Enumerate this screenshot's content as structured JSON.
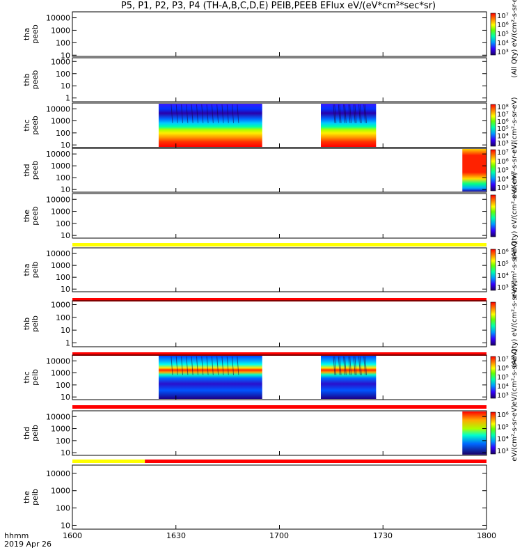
{
  "title": "P5, P1, P2, P3, P4 (TH-A,B,C,D,E) PEIB,PEEB EFlux eV/(eV*cm²*sec*sr)",
  "x_ticks": [
    "1600",
    "1630",
    "1700",
    "1730",
    "1800"
  ],
  "x_label_lines": [
    "hhmm",
    "2019 Apr 26"
  ],
  "chart_data": {
    "type": "heatmap",
    "title": "P5, P1, P2, P3, P4 (TH-A,B,C,D,E) PEIB,PEEB EFlux eV/(eV*cm²*sec*sr)",
    "x_range_hhmm": [
      "16:00",
      "18:00"
    ],
    "x_ticks": [
      "1600",
      "1630",
      "1700",
      "1730",
      "1800"
    ],
    "y_scale": "log",
    "colormap": "rainbow (purple-blue-cyan-green-yellow-red)",
    "panels": [
      {
        "label_lines": [
          "tha",
          "peeb"
        ],
        "yticks": [
          "10",
          "100",
          "1000",
          "10000"
        ],
        "ylim": [
          8,
          30000
        ],
        "data_blocks": [],
        "flag_bar": null,
        "colorbar": {
          "ticks": [
            "10³",
            "10⁴",
            "10⁵",
            "10⁶",
            "10⁷"
          ],
          "label": "(All Qty) eV/(cm²-s-sr-eV)"
        }
      },
      {
        "label_lines": [
          "thb",
          "peeb"
        ],
        "yticks": [
          "1",
          "10",
          "100",
          "1000"
        ],
        "ylim": [
          0.5,
          2000
        ],
        "data_blocks": [],
        "flag_bar": null,
        "colorbar": null
      },
      {
        "label_lines": [
          "thc",
          "peeb"
        ],
        "yticks": [
          "10",
          "100",
          "1000",
          "10000"
        ],
        "ylim": [
          6,
          30000
        ],
        "data_blocks": [
          {
            "start": "16:25",
            "end": "16:55"
          },
          {
            "start": "17:12",
            "end": "17:28"
          }
        ],
        "flag_bar": null,
        "colorbar": {
          "ticks": [
            "10³",
            "10⁴",
            "10⁵",
            "10⁶",
            "10⁷",
            "10⁸"
          ],
          "label": "eV/(cm²-s-sr-eV)"
        }
      },
      {
        "label_lines": [
          "thd",
          "peeb"
        ],
        "yticks": [
          "10",
          "100",
          "1000",
          "10000"
        ],
        "ylim": [
          6,
          30000
        ],
        "data_blocks": [
          {
            "start": "17:53",
            "end": "18:00"
          }
        ],
        "flag_bar": null,
        "colorbar": {
          "ticks": [
            "10³",
            "10⁴",
            "10⁵",
            "10⁶",
            "10⁷"
          ],
          "label": "eV/(cm²-s-sr-eV)"
        }
      },
      {
        "label_lines": [
          "the",
          "peeb"
        ],
        "yticks": [
          "10",
          "100",
          "1000",
          "10000"
        ],
        "ylim": [
          6,
          30000
        ],
        "data_blocks": [],
        "flag_bar": {
          "color": "#ffff00",
          "segments": [
            [
              "16:00",
              "18:00"
            ]
          ]
        },
        "colorbar": {
          "ticks": [],
          "label": "(All Qty) eV/(cm²-s-sr-eV)"
        }
      },
      {
        "label_lines": [
          "tha",
          "peib"
        ],
        "yticks": [
          "10",
          "100",
          "1000",
          "10000"
        ],
        "ylim": [
          6,
          30000
        ],
        "data_blocks": [],
        "flag_bar": {
          "color": "#ff0000",
          "segments": [
            [
              "16:00",
              "18:00"
            ]
          ]
        },
        "colorbar": {
          "ticks": [
            "10³",
            "10⁴",
            "10⁵",
            "10⁶"
          ],
          "label": "eV/(cm²-s-sr-eV)"
        }
      },
      {
        "label_lines": [
          "thb",
          "peib"
        ],
        "yticks": [
          "1",
          "10",
          "100",
          "1000"
        ],
        "ylim": [
          0.5,
          2000
        ],
        "data_blocks": [],
        "flag_bar": {
          "color": "#ff0000",
          "segments": [
            [
              "16:00",
              "18:00"
            ]
          ]
        },
        "colorbar": {
          "ticks": [],
          "label": "(All Qty) eV/(cm²-s-sr-eV)"
        }
      },
      {
        "label_lines": [
          "thc",
          "peib"
        ],
        "yticks": [
          "10",
          "100",
          "1000",
          "10000"
        ],
        "ylim": [
          6,
          30000
        ],
        "data_blocks": [
          {
            "start": "16:25",
            "end": "16:55"
          },
          {
            "start": "17:12",
            "end": "17:28"
          }
        ],
        "flag_bar": {
          "color": "#ff0000",
          "segments": [
            [
              "16:00",
              "18:00"
            ]
          ]
        },
        "colorbar": {
          "ticks": [
            "10³",
            "10⁴",
            "10⁵",
            "10⁶",
            "10⁷"
          ],
          "label": "eV/(cm²-s-sr-eV)"
        }
      },
      {
        "label_lines": [
          "thd",
          "peib"
        ],
        "yticks": [
          "10",
          "100",
          "1000",
          "10000"
        ],
        "ylim": [
          6,
          30000
        ],
        "data_blocks": [
          {
            "start": "17:53",
            "end": "18:00"
          }
        ],
        "flag_bar": {
          "color": "#ffff00",
          "segments": [
            [
              "16:00",
              "16:21"
            ]
          ],
          "color2": "#ff0000",
          "segments2": [
            [
              "16:21",
              "18:00"
            ]
          ]
        },
        "colorbar": {
          "ticks": [
            "10³",
            "10⁴",
            "10⁵",
            "10⁶"
          ],
          "label": "eV/(cm²-s-sr-eV)"
        }
      },
      {
        "label_lines": [
          "the",
          "peib"
        ],
        "yticks": [
          "10",
          "100",
          "1000",
          "10000"
        ],
        "ylim": [
          6,
          30000
        ],
        "data_blocks": [],
        "flag_bar": null,
        "colorbar": null
      }
    ]
  }
}
